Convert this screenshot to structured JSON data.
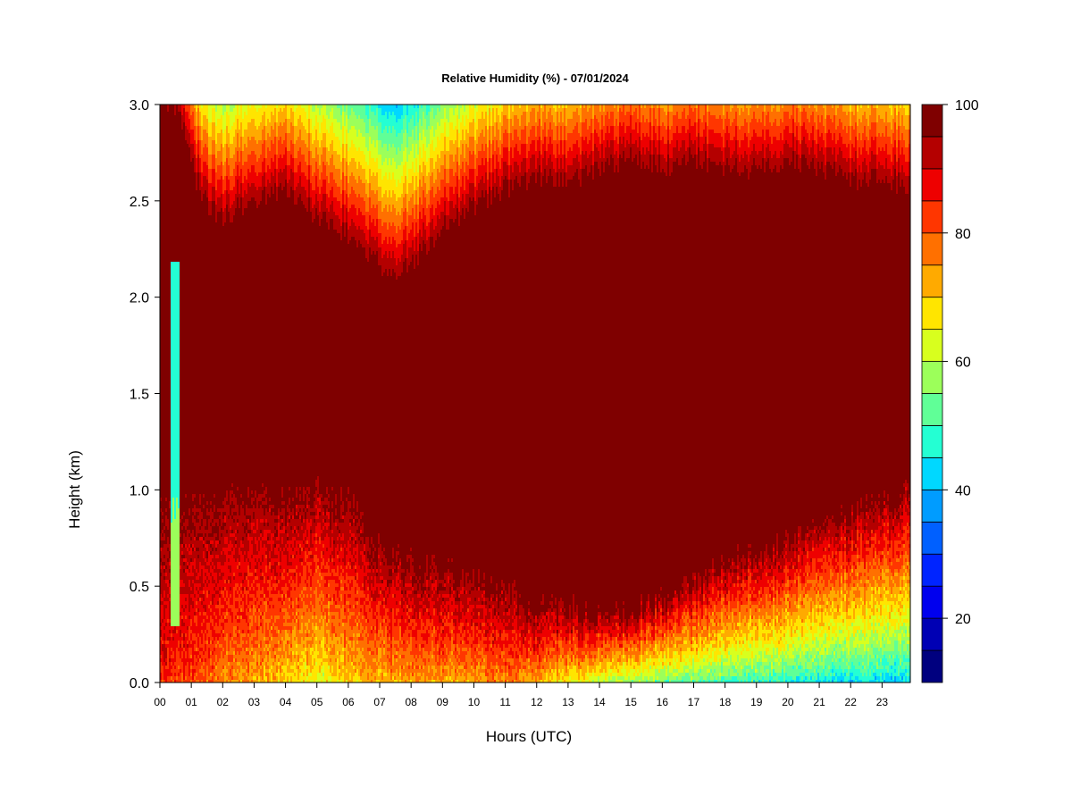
{
  "chart_data": {
    "type": "heatmap",
    "title": "Relative Humidity (%) - 07/01/2024",
    "xlabel": "Hours (UTC)",
    "ylabel": "Height (km)",
    "xlim": [
      0,
      23.9
    ],
    "ylim": [
      0.0,
      3.0
    ],
    "x_ticks": [
      "00",
      "01",
      "02",
      "03",
      "04",
      "05",
      "06",
      "07",
      "08",
      "09",
      "10",
      "11",
      "12",
      "13",
      "14",
      "15",
      "16",
      "17",
      "18",
      "19",
      "20",
      "21",
      "22",
      "23"
    ],
    "y_ticks": [
      "0.0",
      "0.5",
      "1.0",
      "1.5",
      "2.0",
      "2.5",
      "3.0"
    ],
    "colorbar": {
      "min": 10,
      "max": 100,
      "step": 5,
      "tick_values": [
        20,
        40,
        60,
        80,
        100
      ],
      "tick_labels": [
        "20",
        "40",
        "60",
        "80",
        "100"
      ],
      "colors": [
        "#00007f",
        "#0000b4",
        "#0000ee",
        "#0024ff",
        "#0060ff",
        "#009cff",
        "#00d8ff",
        "#24ffd3",
        "#60ff97",
        "#9cff5a",
        "#d8ff1e",
        "#ffe500",
        "#ffaa00",
        "#ff7000",
        "#ff3600",
        "#ee0000",
        "#b40000",
        "#7f0000"
      ]
    },
    "upper_edge_profile": {
      "description_hours": [
        0,
        0.6,
        1,
        1.5,
        2,
        3,
        4,
        5,
        6,
        7,
        7.5,
        8,
        9,
        10,
        11,
        12,
        13,
        14,
        15,
        16,
        17,
        18,
        19,
        20,
        21,
        22,
        23,
        23.9
      ],
      "height_km": [
        3.0,
        2.9,
        2.6,
        2.4,
        2.35,
        2.45,
        2.5,
        2.35,
        2.25,
        2.1,
        2.05,
        2.1,
        2.3,
        2.4,
        2.5,
        2.55,
        2.55,
        2.6,
        2.65,
        2.6,
        2.65,
        2.6,
        2.6,
        2.65,
        2.6,
        2.55,
        2.55,
        2.5
      ]
    },
    "lower_edge_profile": {
      "hours": [
        0,
        1,
        2,
        3,
        4,
        5,
        6,
        7,
        8,
        9,
        10,
        11,
        12,
        13,
        14,
        15,
        16,
        17,
        18,
        19,
        20,
        21,
        22,
        23,
        23.9
      ],
      "height_km": [
        0.9,
        0.95,
        1.0,
        1.0,
        0.95,
        1.0,
        0.95,
        0.7,
        0.65,
        0.6,
        0.55,
        0.5,
        0.4,
        0.4,
        0.35,
        0.4,
        0.45,
        0.55,
        0.65,
        0.7,
        0.75,
        0.85,
        0.9,
        0.95,
        1.0
      ]
    },
    "surface_min_rh": {
      "hours": [
        0,
        2,
        4,
        5,
        6,
        8,
        10,
        11,
        12,
        14,
        16,
        18,
        20,
        22,
        23.9
      ],
      "rh": [
        85,
        75,
        68,
        62,
        68,
        72,
        72,
        75,
        70,
        58,
        52,
        48,
        45,
        42,
        40
      ]
    }
  }
}
